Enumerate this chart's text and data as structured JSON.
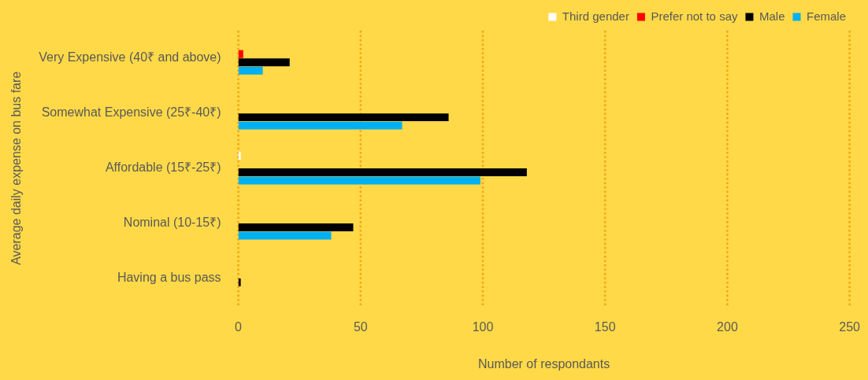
{
  "chart_data": {
    "type": "bar",
    "orientation": "horizontal",
    "xlabel": "Number of respondants",
    "ylabel": "Average daily expense on bus fare",
    "categories": [
      "Very Expensive (40₹ and above)",
      "Somewhat Expensive (25₹-40₹)",
      "Affordable (15₹-25₹)",
      "Nominal (10-15₹)",
      "Having a bus pass"
    ],
    "series": [
      {
        "name": "Third gender",
        "color": "#ffffff",
        "values": [
          0,
          0,
          1,
          0,
          0
        ]
      },
      {
        "name": "Prefer not to say",
        "color": "#ff0000",
        "values": [
          2,
          0,
          0,
          0,
          0
        ]
      },
      {
        "name": "Male",
        "color": "#000000",
        "values": [
          21,
          86,
          118,
          47,
          1
        ]
      },
      {
        "name": "Female",
        "color": "#00b0f0",
        "values": [
          10,
          67,
          99,
          38,
          0
        ]
      }
    ],
    "xlim": [
      0,
      250
    ],
    "xticks": [
      0,
      50,
      100,
      150,
      200,
      250
    ],
    "grid": "x",
    "legend": "top right"
  }
}
